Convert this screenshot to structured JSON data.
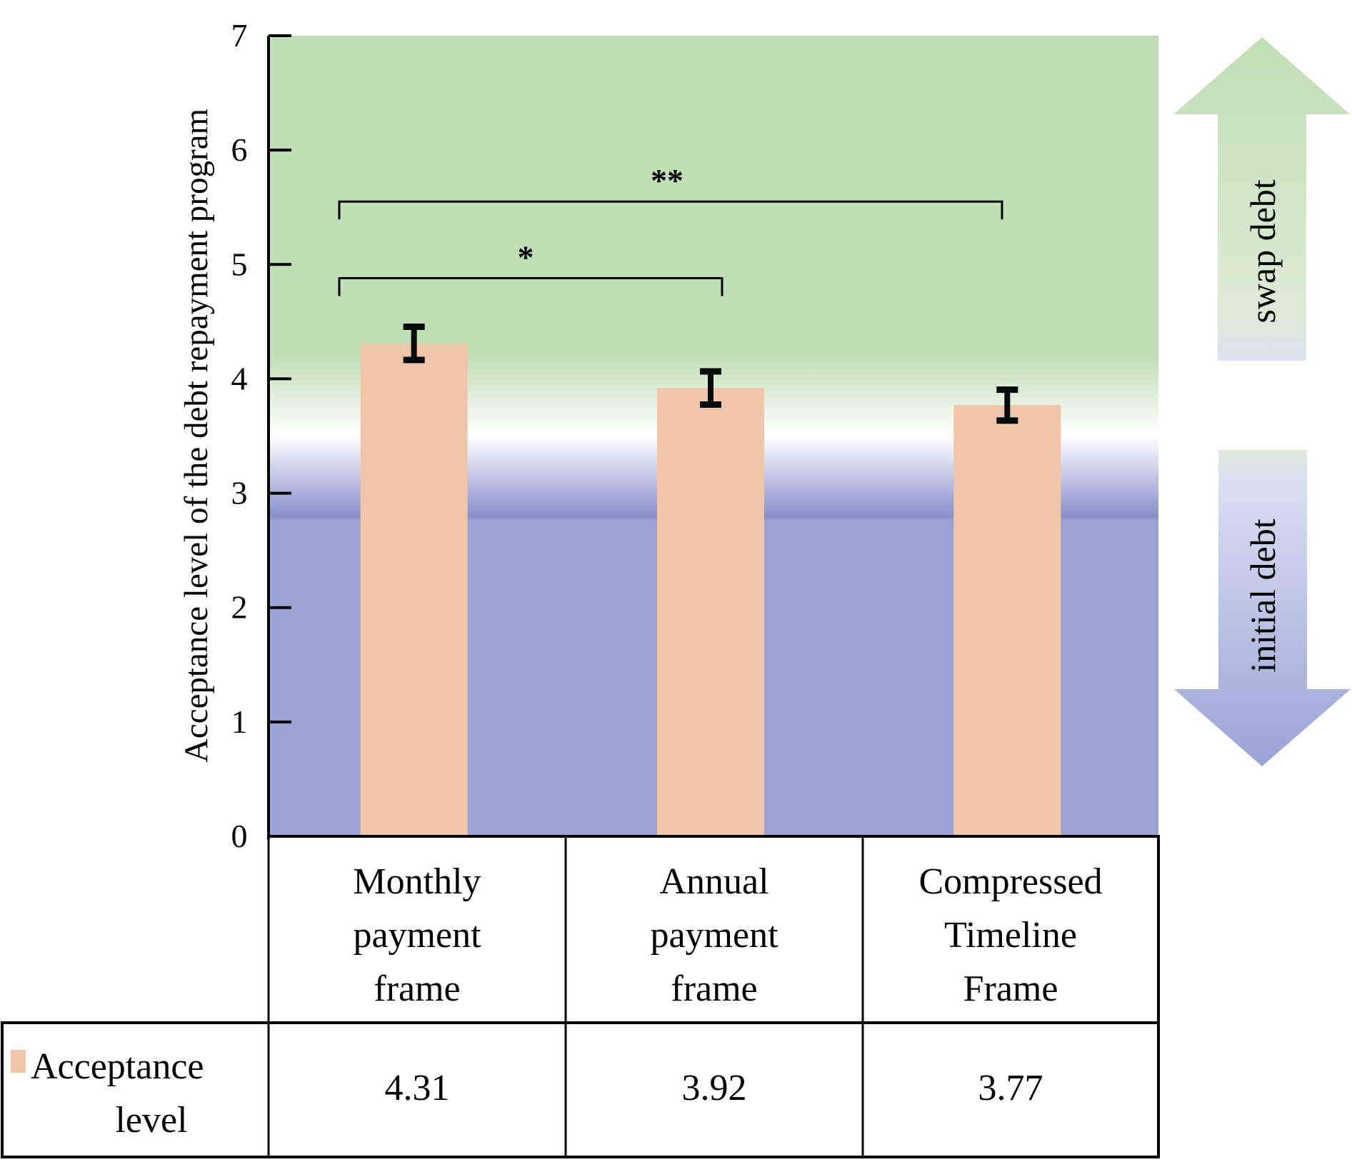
{
  "chart_data": {
    "type": "bar",
    "title": "",
    "xlabel": "",
    "ylabel": "Acceptance level of the debt repayment program",
    "ylim": [
      0,
      7
    ],
    "yticks": [
      0,
      1,
      2,
      3,
      4,
      5,
      6,
      7
    ],
    "grid": false,
    "categories": [
      [
        "Monthly",
        "payment",
        "frame"
      ],
      [
        "Annual",
        "payment",
        "frame"
      ],
      [
        "Compressed",
        "Timeline",
        "Frame"
      ]
    ],
    "series": [
      {
        "name": "Acceptance level",
        "name_lines": [
          "Acceptance",
          "level"
        ],
        "values": [
          4.31,
          3.92,
          3.77
        ],
        "error": [
          0.17,
          0.17,
          0.16
        ],
        "color": "#f0c6aa"
      }
    ],
    "data_table": {
      "row_label": [
        "Acceptance",
        "level"
      ],
      "values": [
        "4.31",
        "3.92",
        "3.77"
      ]
    },
    "significance": [
      {
        "from": 0,
        "to": 1,
        "label": "*",
        "level": 4.88
      },
      {
        "from": 0,
        "to": 2,
        "label": "**",
        "level": 5.55
      }
    ],
    "background_bands": {
      "upper_color": "#c1dfb6",
      "lower_color": "#9aa3d5",
      "transition_top": 4.2,
      "transition_mid": 3.5,
      "transition_bottom": 2.8
    },
    "side_arrows": [
      {
        "direction": "up",
        "label": "swap debt",
        "color": "#c1dfb6"
      },
      {
        "direction": "down",
        "label": "initial debt",
        "color": "#9aa3d5"
      }
    ],
    "legend": "table-left"
  }
}
